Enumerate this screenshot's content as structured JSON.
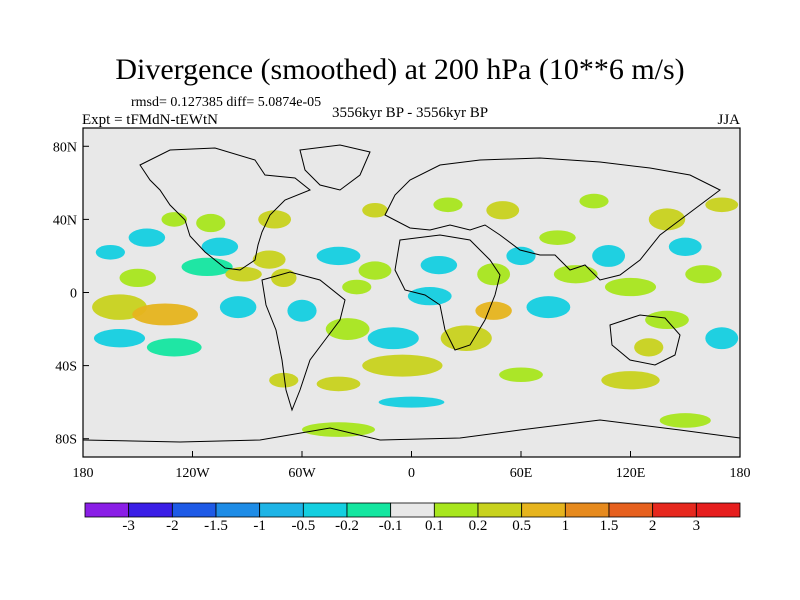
{
  "figure": {
    "title": "Divergence (smoothed) at 200 hPa (10**6 m/s)",
    "stats": "rmsd= 0.127385 diff= 5.0874e-05",
    "experiment": "Expt = tFMdN-tEWtN",
    "period": "3556kyr BP - 3556kyr BP",
    "season": "JJA"
  },
  "chart_data": {
    "type": "heatmap",
    "title": "Divergence (smoothed) at 200 hPa (10**6 m/s)",
    "projection": "cylindrical equidistant",
    "lon_range": [
      -180,
      180
    ],
    "lat_range": [
      -90,
      90
    ],
    "lon_ticks": [
      "180",
      "120W",
      "60W",
      "0",
      "60E",
      "120E",
      "180"
    ],
    "lat_ticks": [
      "80N",
      "40N",
      "0",
      "40S",
      "80S"
    ],
    "colorbar": {
      "labels": [
        "-3",
        "-2",
        "-1.5",
        "-1",
        "-0.5",
        "-0.2",
        "-0.1",
        "0.1",
        "0.2",
        "0.5",
        "1",
        "1.5",
        "2",
        "3"
      ],
      "colors": [
        "#8a1ee6",
        "#3a1ee6",
        "#1e5ae6",
        "#1e8ce6",
        "#1eb4e6",
        "#14cfe0",
        "#14e6a0",
        "#e8e8e8",
        "#a8e61e",
        "#c8d21e",
        "#e6b41e",
        "#e68a1e",
        "#e6601e",
        "#e6281e",
        "#e61e1e"
      ]
    },
    "blobs": [
      {
        "lon": -160,
        "lat": -8,
        "rx": 15,
        "ry": 7,
        "level": 9
      },
      {
        "lon": -135,
        "lat": -12,
        "rx": 18,
        "ry": 6,
        "level": 10
      },
      {
        "lon": -150,
        "lat": 8,
        "rx": 10,
        "ry": 5,
        "level": 8
      },
      {
        "lon": -165,
        "lat": 22,
        "rx": 8,
        "ry": 4,
        "level": 5
      },
      {
        "lon": -145,
        "lat": 30,
        "rx": 10,
        "ry": 5,
        "level": 5
      },
      {
        "lon": -160,
        "lat": -25,
        "rx": 14,
        "ry": 5,
        "level": 5
      },
      {
        "lon": -130,
        "lat": -30,
        "rx": 15,
        "ry": 5,
        "level": 6
      },
      {
        "lon": -112,
        "lat": 14,
        "rx": 14,
        "ry": 5,
        "level": 6
      },
      {
        "lon": -105,
        "lat": 25,
        "rx": 10,
        "ry": 5,
        "level": 5
      },
      {
        "lon": -92,
        "lat": 10,
        "rx": 10,
        "ry": 4,
        "level": 9
      },
      {
        "lon": -95,
        "lat": -8,
        "rx": 10,
        "ry": 6,
        "level": 5
      },
      {
        "lon": -78,
        "lat": 18,
        "rx": 9,
        "ry": 5,
        "level": 9
      },
      {
        "lon": -70,
        "lat": 8,
        "rx": 7,
        "ry": 5,
        "level": 9
      },
      {
        "lon": -60,
        "lat": -10,
        "rx": 8,
        "ry": 6,
        "level": 5
      },
      {
        "lon": -75,
        "lat": 40,
        "rx": 9,
        "ry": 5,
        "level": 9
      },
      {
        "lon": -110,
        "lat": 38,
        "rx": 8,
        "ry": 5,
        "level": 8
      },
      {
        "lon": -130,
        "lat": 40,
        "rx": 7,
        "ry": 4,
        "level": 8
      },
      {
        "lon": -40,
        "lat": 20,
        "rx": 12,
        "ry": 5,
        "level": 5
      },
      {
        "lon": -30,
        "lat": 3,
        "rx": 8,
        "ry": 4,
        "level": 8
      },
      {
        "lon": -20,
        "lat": 12,
        "rx": 9,
        "ry": 5,
        "level": 8
      },
      {
        "lon": -35,
        "lat": -20,
        "rx": 12,
        "ry": 6,
        "level": 8
      },
      {
        "lon": -10,
        "lat": -25,
        "rx": 14,
        "ry": 6,
        "level": 5
      },
      {
        "lon": -5,
        "lat": -40,
        "rx": 22,
        "ry": 6,
        "level": 9
      },
      {
        "lon": -40,
        "lat": -50,
        "rx": 12,
        "ry": 4,
        "level": 9
      },
      {
        "lon": -70,
        "lat": -48,
        "rx": 8,
        "ry": 4,
        "level": 9
      },
      {
        "lon": 15,
        "lat": 15,
        "rx": 10,
        "ry": 5,
        "level": 5
      },
      {
        "lon": 10,
        "lat": -2,
        "rx": 12,
        "ry": 5,
        "level": 5
      },
      {
        "lon": 30,
        "lat": -25,
        "rx": 14,
        "ry": 7,
        "level": 9
      },
      {
        "lon": 45,
        "lat": -10,
        "rx": 10,
        "ry": 5,
        "level": 10
      },
      {
        "lon": 45,
        "lat": 10,
        "rx": 9,
        "ry": 6,
        "level": 8
      },
      {
        "lon": 60,
        "lat": 20,
        "rx": 8,
        "ry": 5,
        "level": 5
      },
      {
        "lon": 75,
        "lat": -8,
        "rx": 12,
        "ry": 6,
        "level": 5
      },
      {
        "lon": 90,
        "lat": 10,
        "rx": 12,
        "ry": 5,
        "level": 8
      },
      {
        "lon": 108,
        "lat": 20,
        "rx": 9,
        "ry": 6,
        "level": 5
      },
      {
        "lon": 120,
        "lat": 3,
        "rx": 14,
        "ry": 5,
        "level": 8
      },
      {
        "lon": 140,
        "lat": -15,
        "rx": 12,
        "ry": 5,
        "level": 8
      },
      {
        "lon": 140,
        "lat": 40,
        "rx": 10,
        "ry": 6,
        "level": 9
      },
      {
        "lon": 150,
        "lat": 25,
        "rx": 9,
        "ry": 5,
        "level": 5
      },
      {
        "lon": 160,
        "lat": 10,
        "rx": 10,
        "ry": 5,
        "level": 8
      },
      {
        "lon": 170,
        "lat": -25,
        "rx": 9,
        "ry": 6,
        "level": 5
      },
      {
        "lon": 170,
        "lat": 48,
        "rx": 9,
        "ry": 4,
        "level": 9
      },
      {
        "lon": 120,
        "lat": -48,
        "rx": 16,
        "ry": 5,
        "level": 9
      },
      {
        "lon": 60,
        "lat": -45,
        "rx": 12,
        "ry": 4,
        "level": 8
      },
      {
        "lon": 50,
        "lat": 45,
        "rx": 9,
        "ry": 5,
        "level": 9
      },
      {
        "lon": 20,
        "lat": 48,
        "rx": 8,
        "ry": 4,
        "level": 8
      },
      {
        "lon": -20,
        "lat": 45,
        "rx": 7,
        "ry": 4,
        "level": 9
      },
      {
        "lon": 100,
        "lat": 50,
        "rx": 8,
        "ry": 4,
        "level": 8
      },
      {
        "lon": 80,
        "lat": 30,
        "rx": 10,
        "ry": 4,
        "level": 8
      },
      {
        "lon": -40,
        "lat": -75,
        "rx": 20,
        "ry": 4,
        "level": 8
      },
      {
        "lon": 150,
        "lat": -70,
        "rx": 14,
        "ry": 4,
        "level": 8
      },
      {
        "lon": 0,
        "lat": -60,
        "rx": 18,
        "ry": 3,
        "level": 5
      },
      {
        "lon": 130,
        "lat": -30,
        "rx": 8,
        "ry": 5,
        "level": 9
      }
    ]
  }
}
